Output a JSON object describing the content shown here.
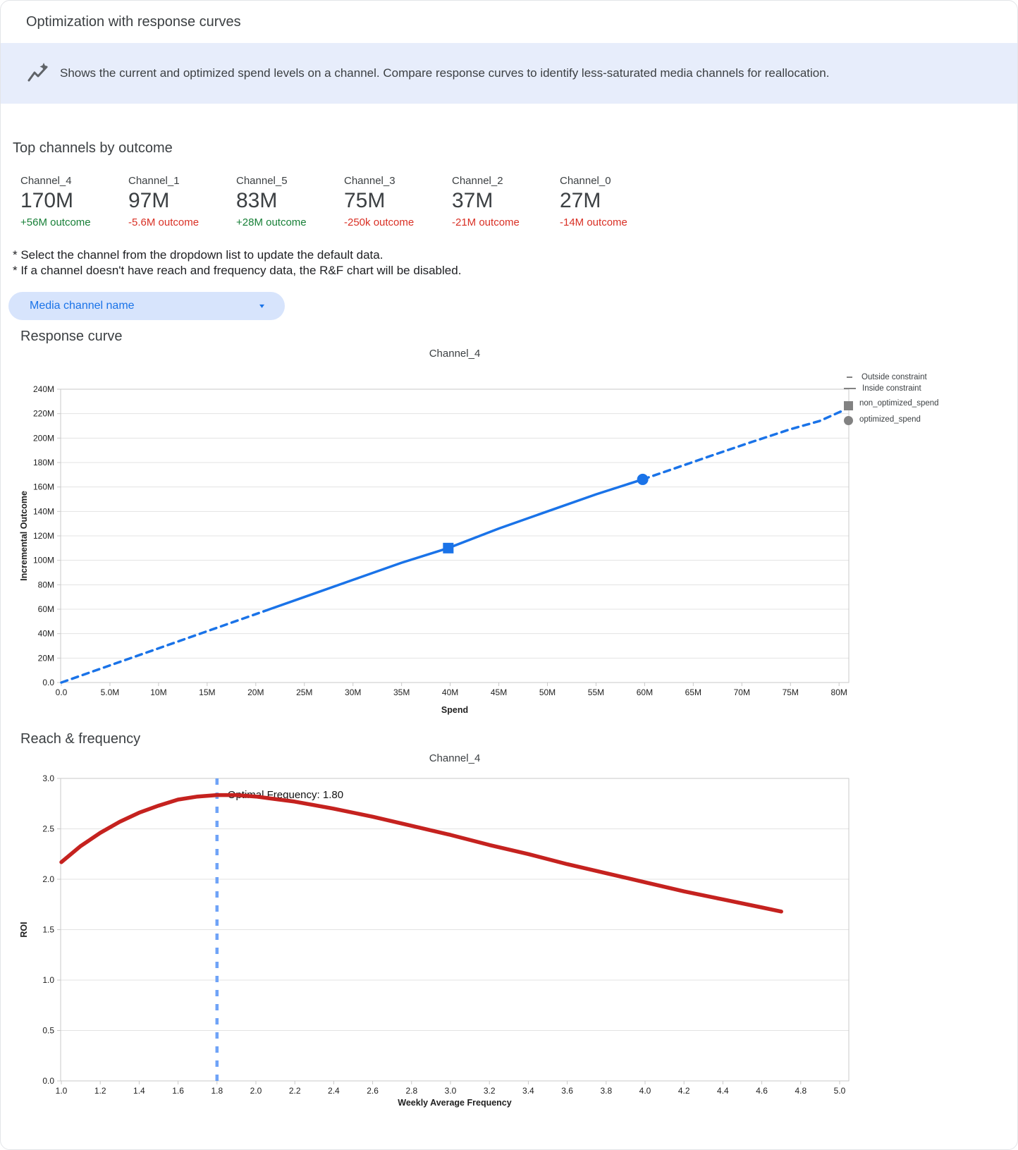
{
  "window": {
    "title": "Optimization with response curves"
  },
  "banner": {
    "icon": "insights-icon",
    "text": "Shows the current and optimized spend levels on a channel. Compare response curves to identify less-saturated media channels for reallocation."
  },
  "top_channels": {
    "heading": "Top channels by outcome",
    "channels": [
      {
        "name": "Channel_4",
        "value": "170M",
        "outcome": "+56M outcome",
        "outcome_class": "outcome positive"
      },
      {
        "name": "Channel_1",
        "value": "97M",
        "outcome": "-5.6M outcome",
        "outcome_class": "outcome negative"
      },
      {
        "name": "Channel_5",
        "value": "83M",
        "outcome": "+28M outcome",
        "outcome_class": "outcome positive"
      },
      {
        "name": "Channel_3",
        "value": "75M",
        "outcome": "-250k outcome",
        "outcome_class": "outcome negative"
      },
      {
        "name": "Channel_2",
        "value": "37M",
        "outcome": "-21M outcome",
        "outcome_class": "outcome negative"
      },
      {
        "name": "Channel_0",
        "value": "27M",
        "outcome": "-14M outcome",
        "outcome_class": "outcome negative"
      }
    ]
  },
  "notes": {
    "line1": "* Select the channel from the dropdown list to update the default data.",
    "line2": "* If a channel doesn't have reach and frequency data, the R&F chart will be disabled."
  },
  "dropdown": {
    "label": "Media channel name",
    "caret": "▾"
  },
  "sections": {
    "response_curve": "Response curve",
    "reach_frequency": "Reach & frequency"
  },
  "legend": {
    "items": [
      {
        "label": "Outside constraint",
        "sample": "dash-short"
      },
      {
        "label": "Inside constraint",
        "sample": "dash-long"
      },
      {
        "label": "non_optimized_spend",
        "sample": "square"
      },
      {
        "label": "optimized_spend",
        "sample": "circle"
      }
    ]
  },
  "colors": {
    "accent_blue": "#1a73e8",
    "curve_red": "#c5221f",
    "vline_blue": "#6fa3f7",
    "positive_green": "#188038",
    "negative_red": "#d93025",
    "banner_bg": "#e7edfb",
    "chip_bg": "#d7e4fc",
    "legend_gray": "#828282",
    "gridline": "#e3e3e3"
  },
  "chart_data": [
    {
      "id": "response_curve",
      "type": "line",
      "title": "Channel_4",
      "xlabel": "Spend",
      "ylabel": "Incremental Outcome",
      "x_unit": "spend in millions",
      "y_unit": "outcome in millions",
      "xlim": [
        0,
        81
      ],
      "ylim": [
        0,
        240
      ],
      "x_ticks": [
        [
          0,
          "0.0"
        ],
        [
          5,
          "5.0M"
        ],
        [
          10,
          "10M"
        ],
        [
          15,
          "15M"
        ],
        [
          20,
          "20M"
        ],
        [
          25,
          "25M"
        ],
        [
          30,
          "30M"
        ],
        [
          35,
          "35M"
        ],
        [
          40,
          "40M"
        ],
        [
          45,
          "45M"
        ],
        [
          50,
          "50M"
        ],
        [
          55,
          "55M"
        ],
        [
          60,
          "60M"
        ],
        [
          65,
          "65M"
        ],
        [
          70,
          "70M"
        ],
        [
          75,
          "75M"
        ],
        [
          80,
          "80M"
        ]
      ],
      "y_ticks": [
        [
          0,
          "0.0"
        ],
        [
          20,
          "20M"
        ],
        [
          40,
          "40M"
        ],
        [
          60,
          "60M"
        ],
        [
          80,
          "80M"
        ],
        [
          100,
          "100M"
        ],
        [
          120,
          "120M"
        ],
        [
          140,
          "140M"
        ],
        [
          160,
          "160M"
        ],
        [
          180,
          "180M"
        ],
        [
          200,
          "200M"
        ],
        [
          220,
          "220M"
        ],
        [
          240,
          "240M"
        ]
      ],
      "line_color": "#1a73e8",
      "segments": [
        {
          "style": "dashed",
          "label": "Outside constraint",
          "points": [
            [
              0,
              0
            ],
            [
              5,
              14
            ],
            [
              10,
              28
            ],
            [
              15,
              42
            ],
            [
              20.8,
              58.2
            ]
          ]
        },
        {
          "style": "solid",
          "label": "Inside constraint",
          "points": [
            [
              20.8,
              58.2
            ],
            [
              25,
              70
            ],
            [
              30,
              84
            ],
            [
              35,
              98
            ],
            [
              39.8,
              110
            ],
            [
              45,
              126
            ],
            [
              50,
              140
            ],
            [
              55,
              154
            ],
            [
              59.8,
              166.2
            ]
          ]
        },
        {
          "style": "dashed",
          "label": "Outside constraint",
          "points": [
            [
              59.8,
              166.2
            ],
            [
              63,
              175
            ],
            [
              67,
              186
            ],
            [
              71,
              196.8
            ],
            [
              75,
              207.3
            ],
            [
              78,
              214
            ],
            [
              80.4,
              222.5
            ]
          ]
        }
      ],
      "markers": {
        "non_optimized_spend": {
          "shape": "square",
          "point": [
            39.8,
            110
          ]
        },
        "optimized_spend": {
          "shape": "circle",
          "point": [
            59.8,
            166.2
          ]
        }
      }
    },
    {
      "id": "reach_frequency",
      "type": "line",
      "title": "Channel_4",
      "xlabel": "Weekly Average Frequency",
      "ylabel": "ROI",
      "xlim": [
        1.0,
        5.0
      ],
      "ylim": [
        0,
        3.0
      ],
      "x_ticks": [
        [
          1.0,
          "1.0"
        ],
        [
          1.2,
          "1.2"
        ],
        [
          1.4,
          "1.4"
        ],
        [
          1.6,
          "1.6"
        ],
        [
          1.8,
          "1.8"
        ],
        [
          2.0,
          "2.0"
        ],
        [
          2.2,
          "2.2"
        ],
        [
          2.4,
          "2.4"
        ],
        [
          2.6,
          "2.6"
        ],
        [
          2.8,
          "2.8"
        ],
        [
          3.0,
          "3.0"
        ],
        [
          3.2,
          "3.2"
        ],
        [
          3.4,
          "3.4"
        ],
        [
          3.6,
          "3.6"
        ],
        [
          3.8,
          "3.8"
        ],
        [
          4.0,
          "4.0"
        ],
        [
          4.2,
          "4.2"
        ],
        [
          4.4,
          "4.4"
        ],
        [
          4.6,
          "4.6"
        ],
        [
          4.8,
          "4.8"
        ],
        [
          5.0,
          "5.0"
        ]
      ],
      "y_ticks": [
        [
          0,
          "0.0"
        ],
        [
          0.5,
          "0.5"
        ],
        [
          1.0,
          "1.0"
        ],
        [
          1.5,
          "1.5"
        ],
        [
          2.0,
          "2.0"
        ],
        [
          2.5,
          "2.5"
        ],
        [
          3.0,
          "3.0"
        ]
      ],
      "line_color": "#c5221f",
      "optimal_frequency": 1.8,
      "annotation": "Optimal Frequency: 1.80",
      "vline_color": "#6fa3f7",
      "curve": [
        [
          1.0,
          2.17
        ],
        [
          1.1,
          2.33
        ],
        [
          1.2,
          2.46
        ],
        [
          1.3,
          2.57
        ],
        [
          1.4,
          2.66
        ],
        [
          1.5,
          2.73
        ],
        [
          1.6,
          2.79
        ],
        [
          1.7,
          2.82
        ],
        [
          1.8,
          2.835
        ],
        [
          1.9,
          2.835
        ],
        [
          2.0,
          2.82
        ],
        [
          2.2,
          2.77
        ],
        [
          2.4,
          2.7
        ],
        [
          2.6,
          2.62
        ],
        [
          2.8,
          2.53
        ],
        [
          3.0,
          2.44
        ],
        [
          3.2,
          2.34
        ],
        [
          3.4,
          2.25
        ],
        [
          3.6,
          2.15
        ],
        [
          3.8,
          2.06
        ],
        [
          4.0,
          1.97
        ],
        [
          4.2,
          1.88
        ],
        [
          4.4,
          1.8
        ],
        [
          4.6,
          1.72
        ],
        [
          4.7,
          1.68
        ]
      ]
    }
  ]
}
